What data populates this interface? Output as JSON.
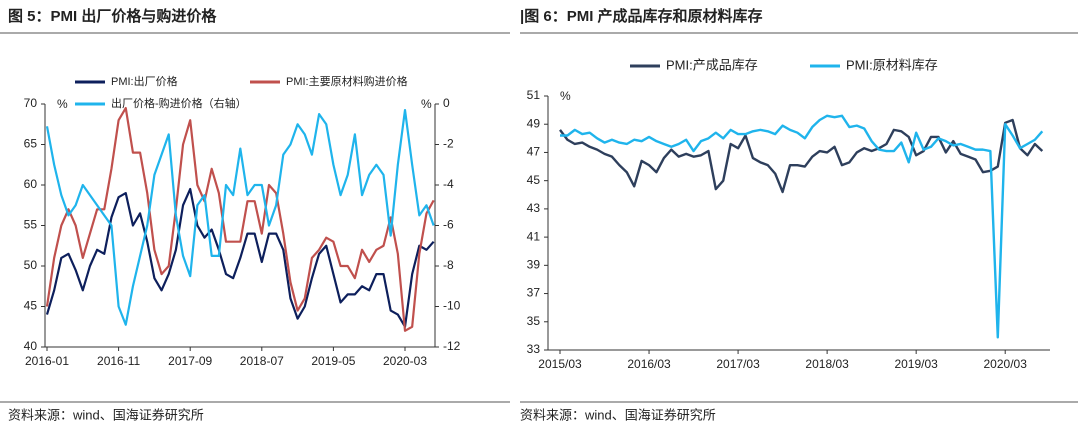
{
  "chart_data": [
    {
      "type": "line",
      "title": "图 5：PMI 出厂价格与购进价格",
      "source": "资料来源：wind、国海证券研究所",
      "ylabel": "%",
      "y2label": "%",
      "categories": [
        "2016-01",
        null,
        null,
        null,
        null,
        null,
        null,
        null,
        null,
        null,
        "2016-11",
        null,
        null,
        null,
        null,
        null,
        null,
        null,
        null,
        null,
        "2017-09",
        null,
        null,
        null,
        null,
        null,
        null,
        null,
        null,
        null,
        "2018-07",
        null,
        null,
        null,
        null,
        null,
        null,
        null,
        null,
        null,
        "2019-05",
        null,
        null,
        null,
        null,
        null,
        null,
        null,
        null,
        null,
        "2020-03",
        null,
        null,
        null,
        null
      ],
      "ylim": [
        40,
        70
      ],
      "yticks": [
        40,
        45,
        50,
        55,
        60,
        65,
        70
      ],
      "y2lim": [
        -12,
        0
      ],
      "y2ticks": [
        -12,
        -10,
        -8,
        -6,
        -4,
        -2,
        0
      ],
      "series": [
        {
          "name": "PMI:出厂价格",
          "color": "#0d1f5c",
          "values": [
            44,
            47,
            51,
            51.5,
            49.5,
            47,
            50,
            52,
            51.5,
            56,
            58.5,
            59,
            55,
            56.5,
            53,
            48.5,
            47,
            49,
            52,
            57.5,
            59.5,
            55,
            53.5,
            54.5,
            52,
            49,
            48.5,
            51,
            54,
            54,
            50.5,
            54,
            54,
            52,
            46,
            43.5,
            45,
            48.5,
            51.5,
            52.5,
            49,
            45.5,
            46.5,
            46.5,
            47.5,
            47,
            49,
            49,
            44.5,
            44,
            42.5,
            49,
            52.5,
            52,
            53
          ]
        },
        {
          "name": "PMI:主要原材料购进价格",
          "color": "#c0504d",
          "values": [
            45,
            51,
            55,
            57,
            55,
            51,
            54,
            57,
            57,
            62,
            68,
            69.5,
            64,
            64,
            59,
            52,
            49,
            50,
            57,
            65,
            68,
            60,
            58,
            62,
            59,
            53,
            53,
            53,
            58,
            58,
            54,
            60,
            59,
            54,
            48,
            44.5,
            46,
            51,
            52,
            53.5,
            53,
            50,
            50,
            48.5,
            52,
            50.5,
            52,
            52.5,
            56,
            51.5,
            42,
            42.5,
            51.5,
            56.5,
            58.1
          ]
        },
        {
          "name": "出厂价格-购进价格（右轴）",
          "color": "#1fb4ec",
          "axis": "y2",
          "values": [
            -1.1,
            -3,
            -4.5,
            -5.5,
            -5,
            -4,
            -4.5,
            -5,
            -5.5,
            -6,
            -10,
            -10.9,
            -9,
            -7.5,
            -6,
            -3.5,
            -2.5,
            -1.5,
            -5.5,
            -7.5,
            -8.5,
            -5,
            -4.5,
            -7.5,
            -7.5,
            -4,
            -4.5,
            -2.2,
            -4.5,
            -4,
            -4,
            -6,
            -5,
            -2.5,
            -2,
            -1,
            -1.5,
            -2.5,
            -0.5,
            -1,
            -3,
            -4.5,
            -3.5,
            -1.5,
            -4.5,
            -3.5,
            -3,
            -3.5,
            -6.5,
            -3,
            -0.3,
            -3,
            -5.5,
            -5,
            -6
          ]
        }
      ]
    },
    {
      "type": "line",
      "title": "|图 6：PMI 产成品库存和原材料库存",
      "source": "资料来源：wind、国海证券研究所",
      "ylabel": "%",
      "categories": [
        "2015/03",
        null,
        null,
        null,
        null,
        null,
        null,
        null,
        null,
        null,
        null,
        null,
        "2016/03",
        null,
        null,
        null,
        null,
        null,
        null,
        null,
        null,
        null,
        null,
        null,
        "2017/03",
        null,
        null,
        null,
        null,
        null,
        null,
        null,
        null,
        null,
        null,
        null,
        "2018/03",
        null,
        null,
        null,
        null,
        null,
        null,
        null,
        null,
        null,
        null,
        null,
        "2019/03",
        null,
        null,
        null,
        null,
        null,
        null,
        null,
        null,
        null,
        null,
        null,
        "2020/03",
        null,
        null,
        null,
        null,
        null
      ],
      "ylim": [
        33,
        51
      ],
      "yticks": [
        33,
        35,
        37,
        39,
        41,
        43,
        45,
        47,
        49,
        51
      ],
      "series": [
        {
          "name": "PMI:产成品库存",
          "color": "#2e3f5c",
          "values": [
            48.6,
            47.9,
            47.6,
            47.7,
            47.4,
            47.2,
            46.9,
            46.7,
            46.1,
            45.6,
            44.6,
            46.4,
            46.1,
            45.6,
            46.6,
            47.2,
            46.7,
            46.9,
            46.7,
            46.8,
            47.1,
            44.4,
            45.0,
            47.6,
            47.3,
            48.2,
            46.6,
            46.3,
            46.1,
            45.5,
            44.2,
            46.1,
            46.1,
            46.0,
            46.7,
            47.1,
            47.0,
            47.4,
            46.1,
            46.3,
            47.0,
            47.3,
            47.1,
            47.3,
            47.6,
            48.6,
            48.5,
            48.1,
            46.8,
            47.1,
            48.1,
            48.1,
            47.0,
            47.8,
            46.9,
            46.7,
            46.5,
            45.6,
            45.7,
            46.0,
            49.1,
            49.3,
            47.3,
            46.8,
            47.6,
            47.1
          ]
        },
        {
          "name": "PMI:原材料库存",
          "color": "#1fb4ec",
          "values": [
            48.2,
            48.2,
            48.6,
            48.3,
            48.4,
            48.0,
            47.7,
            47.9,
            47.7,
            47.6,
            47.9,
            47.8,
            48.1,
            47.8,
            47.6,
            47.4,
            47.6,
            47.9,
            47.1,
            47.8,
            48.0,
            48.4,
            48.0,
            48.6,
            48.3,
            48.3,
            48.5,
            48.6,
            48.5,
            48.3,
            48.9,
            48.6,
            48.4,
            48.0,
            48.8,
            49.3,
            49.6,
            49.5,
            49.6,
            48.8,
            48.9,
            48.7,
            47.8,
            47.2,
            47.1,
            47.1,
            47.7,
            46.3,
            48.4,
            47.2,
            47.4,
            48.0,
            47.8,
            47.5,
            47.6,
            47.4,
            47.2,
            47.2,
            47.1,
            33.9,
            49.0,
            48.2,
            47.3,
            47.6,
            47.9,
            48.5
          ]
        }
      ]
    }
  ]
}
